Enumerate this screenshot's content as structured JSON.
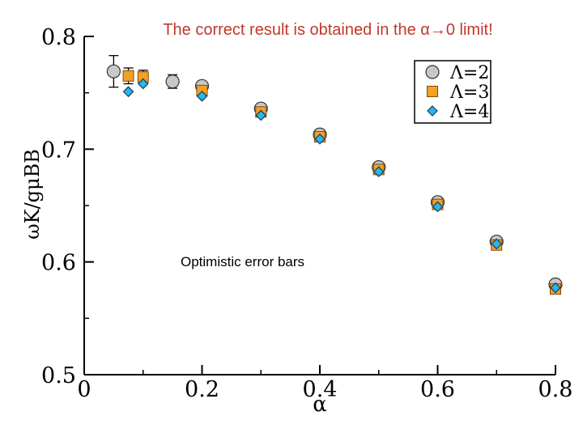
{
  "chart_data": {
    "type": "scatter",
    "title": "The correct result is obtained in the α→0 limit!",
    "title_color": "#c0392b",
    "annotation": "Optimistic error bars",
    "xlabel": "α",
    "ylabel": "ωK/gμBB",
    "xlim": [
      0,
      0.8
    ],
    "ylim": [
      0.5,
      0.8
    ],
    "x_ticks": [
      0,
      0.2,
      0.4,
      0.6,
      0.8
    ],
    "x_tick_labels": [
      "0",
      "0.2",
      "0.4",
      "0.6",
      "0.8"
    ],
    "y_ticks": [
      0.5,
      0.6,
      0.7,
      0.8
    ],
    "y_tick_labels": [
      "0.5",
      "0.6",
      "0.7",
      "0.8"
    ],
    "legend_position": "top-right",
    "series": [
      {
        "name": "Λ=2",
        "marker": "circle",
        "color": "#c8c8c8",
        "x": [
          0.05,
          0.15,
          0.2,
          0.3,
          0.4,
          0.5,
          0.6,
          0.7,
          0.8
        ],
        "y": [
          0.769,
          0.76,
          0.756,
          0.736,
          0.713,
          0.684,
          0.653,
          0.618,
          0.58
        ],
        "err": [
          0.014,
          0.006,
          0,
          0,
          0,
          0,
          0,
          0,
          0
        ]
      },
      {
        "name": "Λ=3",
        "marker": "square",
        "color": "#f5a023",
        "x": [
          0.075,
          0.1,
          0.2,
          0.3,
          0.4,
          0.5,
          0.6,
          0.7,
          0.8
        ],
        "y": [
          0.765,
          0.764,
          0.752,
          0.733,
          0.711,
          0.682,
          0.651,
          0.615,
          0.576
        ],
        "err": [
          0.007,
          0.006,
          0,
          0,
          0,
          0,
          0,
          0,
          0
        ]
      },
      {
        "name": "Λ=4",
        "marker": "diamond",
        "color": "#29b6ea",
        "x": [
          0.075,
          0.1,
          0.2,
          0.3,
          0.4,
          0.5,
          0.6,
          0.7,
          0.8
        ],
        "y": [
          0.751,
          0.758,
          0.747,
          0.73,
          0.709,
          0.68,
          0.649,
          0.616,
          0.577
        ],
        "err": [
          0,
          0,
          0,
          0,
          0,
          0,
          0,
          0,
          0
        ]
      }
    ]
  }
}
